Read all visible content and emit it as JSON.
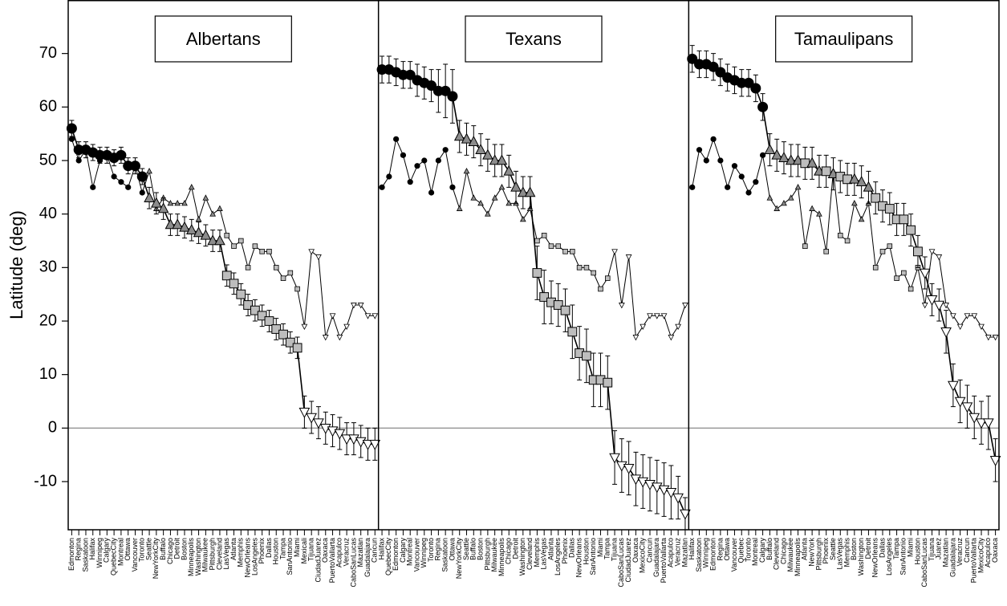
{
  "chart_data": {
    "type": "dot",
    "ylabel": "Latitude (deg)",
    "ylim": [
      -19,
      80
    ],
    "yticks": [
      -10,
      0,
      10,
      20,
      30,
      40,
      50,
      60,
      70
    ],
    "marker_colors": {
      "circle": "#000000",
      "triangle": "#8c8c8c",
      "square": "#bdbdbd",
      "triangle-down": "#ffffff"
    },
    "panels": [
      {
        "title": "Albertans",
        "categories": [
          "Edmonton",
          "Regina",
          "Saskatoon",
          "Halifax",
          "Winnipeg",
          "Calgary",
          "QuebecCity",
          "Montreal",
          "Ottawa",
          "Vancouver",
          "Toronto",
          "Seattle",
          "NewYorkCity",
          "Buffalo",
          "Chicago",
          "Detroit",
          "Boston",
          "Minneapolis",
          "Washington",
          "Milwaukee",
          "Pittsburgh",
          "Cleveland",
          "LasVegas",
          "Atlanta",
          "Memphis",
          "NewOrleans",
          "LosAngeles",
          "Phoenix",
          "Dallas",
          "Houston",
          "Tampa",
          "SanAntonio",
          "Miami",
          "Mexicali",
          "Tijuana",
          "CiudadJuarez",
          "Oaxaca",
          "PuertoVallarta",
          "Acapulco",
          "Veracruz",
          "CaboSanLucas",
          "Mazatlan",
          "Guadalajara",
          "Cancun"
        ],
        "markers": [
          "circle",
          "circle",
          "circle",
          "circle",
          "circle",
          "circle",
          "circle",
          "circle",
          "circle",
          "circle",
          "circle",
          "triangle",
          "triangle",
          "triangle",
          "triangle",
          "triangle",
          "triangle",
          "triangle",
          "triangle",
          "triangle",
          "triangle",
          "triangle",
          "square",
          "square",
          "square",
          "square",
          "square",
          "square",
          "square",
          "square",
          "square",
          "square",
          "square",
          "triangle-down",
          "triangle-down",
          "triangle-down",
          "triangle-down",
          "triangle-down",
          "triangle-down",
          "triangle-down",
          "triangle-down",
          "triangle-down",
          "triangle-down",
          "triangle-down"
        ],
        "estimate": [
          56,
          52,
          52,
          51.5,
          51,
          51,
          50.5,
          51,
          49,
          49,
          47,
          43,
          42,
          41,
          38,
          38,
          37.5,
          37,
          36.5,
          36,
          35,
          35,
          28.5,
          27,
          25,
          23,
          22,
          21,
          20,
          18.5,
          17.5,
          16,
          15,
          3,
          2,
          1,
          0,
          -0.5,
          -1,
          -2,
          -2,
          -2.5,
          -3,
          -3
        ],
        "error": [
          1.5,
          1.5,
          1.5,
          1.5,
          1.5,
          1.5,
          1.5,
          1.5,
          1.5,
          1.5,
          1.5,
          2,
          2,
          2,
          2,
          2,
          2,
          2,
          2,
          2,
          2,
          2,
          2,
          2,
          2,
          2,
          2,
          2,
          2,
          2,
          2,
          2,
          2,
          3,
          3,
          3,
          3,
          3,
          3,
          3,
          3,
          3,
          3,
          3
        ],
        "actual": [
          54,
          50,
          52,
          45,
          50,
          51,
          47,
          46,
          45,
          49,
          44,
          48,
          41,
          43,
          42,
          42,
          42,
          45,
          39,
          43,
          40,
          41,
          36,
          34,
          35,
          30,
          34,
          33,
          33,
          30,
          28,
          29,
          26,
          19,
          33,
          32,
          17,
          21,
          17,
          19,
          23,
          23,
          21,
          21
        ]
      },
      {
        "title": "Texans",
        "categories": [
          "Halifax",
          "QuebecCity",
          "Edmonton",
          "Calgary",
          "Montreal",
          "Vancouver",
          "Winnipeg",
          "Toronto",
          "Regina",
          "Saskatoon",
          "Ottawa",
          "NewYorkCity",
          "Seattle",
          "Buffalo",
          "Boston",
          "Pittsburgh",
          "Milwaukee",
          "Minneapolis",
          "Chicago",
          "Detroit",
          "Washington",
          "Cleveland",
          "Memphis",
          "LasVegas",
          "Atlanta",
          "LosAngeles",
          "Phoenix",
          "Dallas",
          "NewOrleans",
          "Houston",
          "SanAntonio",
          "Miami",
          "Tampa",
          "Tijuana",
          "CaboSanLucas",
          "CiudadJuarez",
          "Oaxaca",
          "MexicoCity",
          "Cancun",
          "Guadalajara",
          "PuertoVallarta",
          "Acapulco",
          "Veracruz",
          "Mazatlan"
        ],
        "markers": [
          "circle",
          "circle",
          "circle",
          "circle",
          "circle",
          "circle",
          "circle",
          "circle",
          "circle",
          "circle",
          "circle",
          "triangle",
          "triangle",
          "triangle",
          "triangle",
          "triangle",
          "triangle",
          "triangle",
          "triangle",
          "triangle",
          "triangle",
          "triangle",
          "square",
          "square",
          "square",
          "square",
          "square",
          "square",
          "square",
          "square",
          "square",
          "square",
          "square",
          "triangle-down",
          "triangle-down",
          "triangle-down",
          "triangle-down",
          "triangle-down",
          "triangle-down",
          "triangle-down",
          "triangle-down",
          "triangle-down",
          "triangle-down",
          "triangle-down"
        ],
        "estimate": [
          67,
          67,
          66.5,
          66,
          66,
          65,
          64.5,
          64,
          63,
          63,
          62,
          54.5,
          54,
          53.5,
          52,
          51,
          50,
          50,
          48,
          45,
          44,
          44,
          29,
          24.5,
          23.5,
          23,
          22,
          18,
          14,
          13.5,
          9,
          9,
          8.5,
          -5.5,
          -7,
          -7.5,
          -9.5,
          -10,
          -10.5,
          -11,
          -11.5,
          -12,
          -13,
          -16
        ],
        "error": [
          2.5,
          2.5,
          2.5,
          2.5,
          2.5,
          3,
          3,
          3,
          4,
          5,
          5,
          3,
          3,
          3,
          3,
          3,
          3,
          3,
          3,
          3,
          3,
          3,
          5,
          5,
          4,
          4,
          4,
          5,
          5,
          5,
          5,
          5,
          5,
          5,
          5,
          5,
          5,
          5,
          5,
          5,
          5,
          5,
          4,
          3
        ],
        "actual": [
          45,
          47,
          54,
          51,
          46,
          49,
          50,
          44,
          50,
          52,
          45,
          41,
          48,
          43,
          42,
          40,
          43,
          45,
          42,
          42,
          39,
          41,
          35,
          36,
          34,
          34,
          33,
          33,
          30,
          30,
          29,
          26,
          28,
          33,
          23,
          32,
          17,
          19,
          21,
          21,
          21,
          17,
          19,
          23
        ]
      },
      {
        "title": "Tamaulipans",
        "categories": [
          "Halifax",
          "Saskatoon",
          "Winnipeg",
          "Edmonton",
          "Regina",
          "Ottawa",
          "Vancouver",
          "Quebec",
          "Toronto",
          "Montreal",
          "Calgary",
          "Buffalo",
          "Cleveland",
          "Chicago",
          "Milwaukee",
          "Minneapolis",
          "Atlanta",
          "NewYork",
          "Pittsburgh",
          "Phoenix",
          "Seattle",
          "LasVegas",
          "Memphis",
          "Boston",
          "Washington",
          "Detroit",
          "NewOrleans",
          "Dallas",
          "LosAngeles",
          "Tampa",
          "SanAntonio",
          "Miami",
          "Houston",
          "CaboSanLucas",
          "Tijuana",
          "Juarez",
          "Mazatlan",
          "Guadalajara",
          "Veracruz",
          "Cancun",
          "PuertoVallarta",
          "MexicoCity",
          "Acapulco",
          "Oaxaca"
        ],
        "markers": [
          "circle",
          "circle",
          "circle",
          "circle",
          "circle",
          "circle",
          "circle",
          "circle",
          "circle",
          "circle",
          "circle",
          "triangle",
          "triangle",
          "triangle",
          "triangle",
          "triangle",
          "square",
          "triangle",
          "triangle",
          "square",
          "triangle",
          "square",
          "square",
          "triangle",
          "triangle",
          "triangle",
          "square",
          "square",
          "square",
          "square",
          "square",
          "square",
          "square",
          "triangle-down",
          "triangle-down",
          "triangle-down",
          "triangle-down",
          "triangle-down",
          "triangle-down",
          "triangle-down",
          "triangle-down",
          "triangle-down",
          "triangle-down",
          "triangle-down"
        ],
        "estimate": [
          69,
          68,
          68,
          67.5,
          66.5,
          65.5,
          65,
          64.5,
          64.5,
          63.5,
          60,
          52,
          51,
          50.5,
          50,
          50,
          49.5,
          49.5,
          48,
          48,
          47.5,
          47,
          46.5,
          46.5,
          46,
          45,
          43,
          41.5,
          41,
          39,
          39,
          37,
          33,
          29,
          24,
          23,
          18,
          8,
          5,
          4,
          2,
          1,
          1,
          -6
        ],
        "error": [
          2.5,
          2.5,
          2.5,
          2.5,
          2.5,
          2.5,
          2.5,
          2.5,
          2.5,
          2.5,
          2.5,
          3,
          3,
          3,
          3,
          3,
          3,
          3,
          3,
          3,
          3,
          3,
          3,
          3,
          3,
          3,
          3,
          3,
          3,
          3,
          3,
          3,
          3,
          3,
          3,
          3,
          4,
          4,
          4,
          4,
          4,
          4,
          5,
          4
        ],
        "actual": [
          45,
          52,
          50,
          54,
          50,
          45,
          49,
          47,
          44,
          46,
          51,
          43,
          41,
          42,
          43,
          45,
          34,
          41,
          40,
          33,
          48,
          36,
          35,
          42,
          39,
          42,
          30,
          33,
          34,
          28,
          29,
          26,
          30,
          23,
          33,
          32,
          23,
          21,
          19,
          21,
          21,
          19,
          17,
          17
        ]
      }
    ]
  }
}
